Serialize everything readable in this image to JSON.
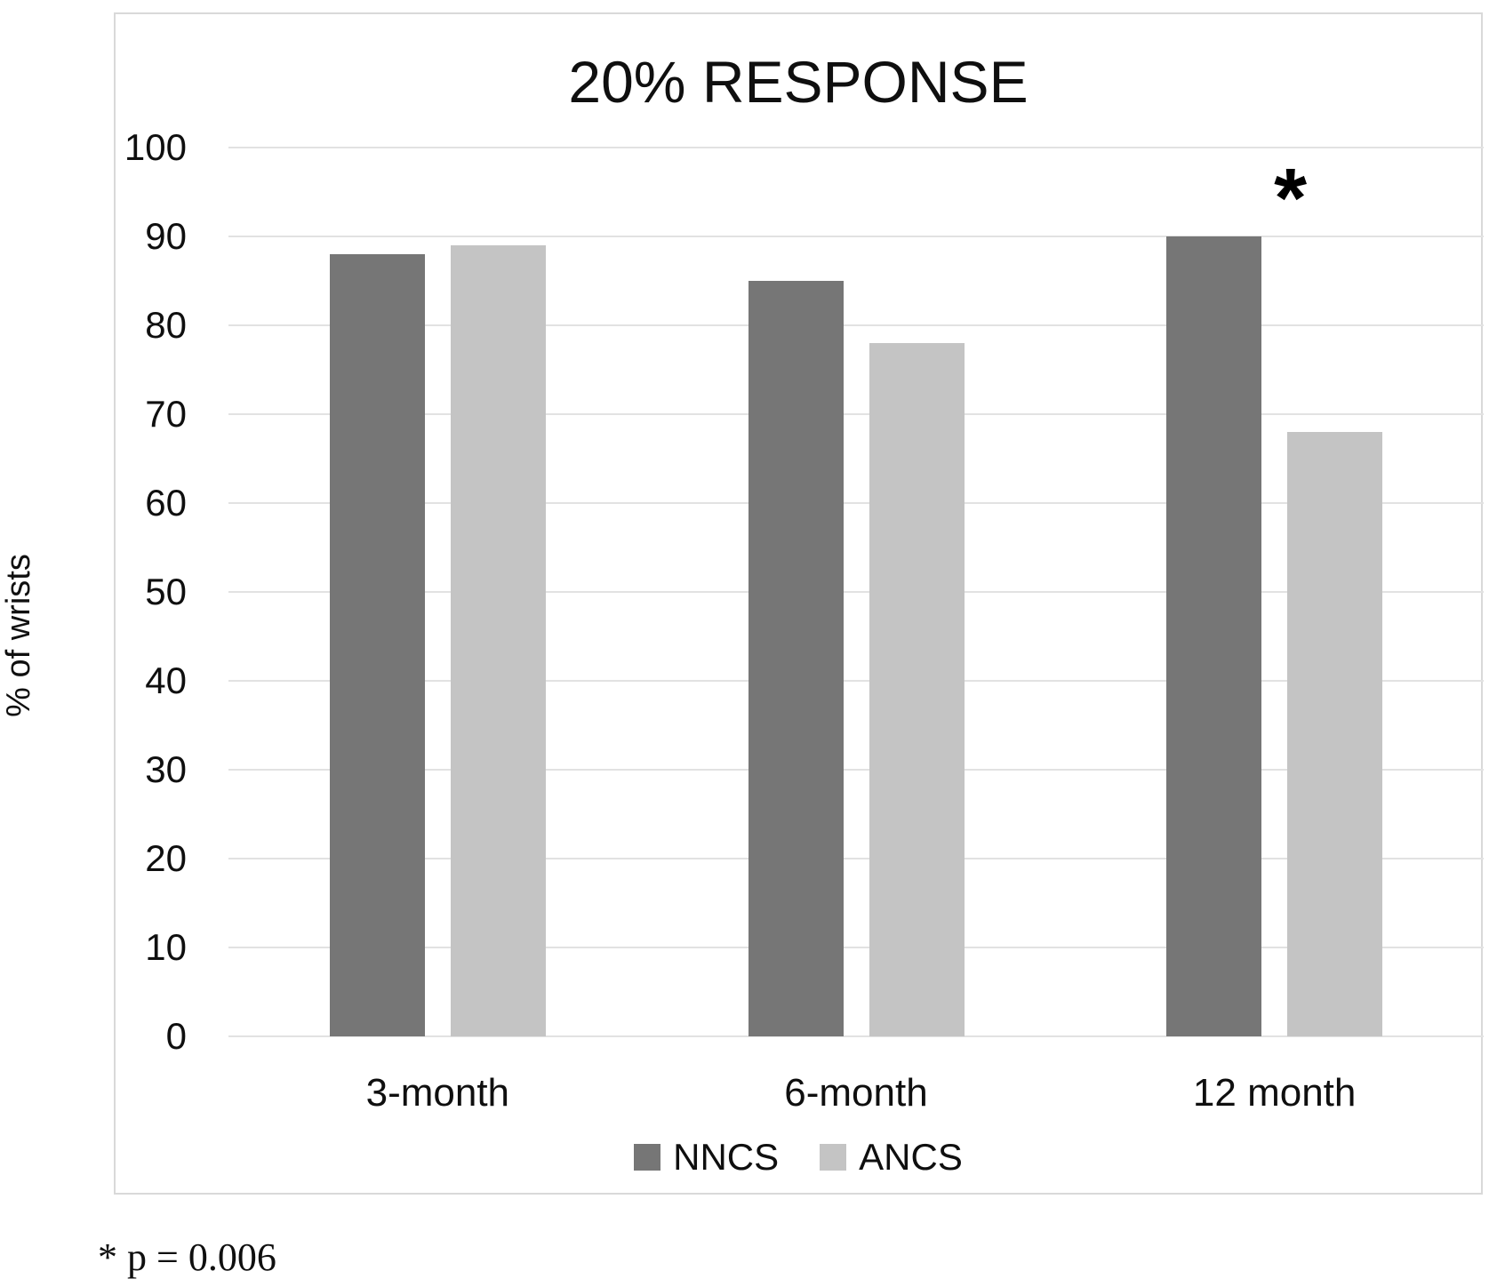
{
  "figure": {
    "footnote": "* p = 0.006"
  },
  "chart_data": {
    "type": "bar",
    "title": "20% RESPONSE",
    "ylabel": "% of wrists",
    "xlabel": "",
    "categories": [
      "3-month",
      "6-month",
      "12 month"
    ],
    "series": [
      {
        "name": "NNCS",
        "color": "#767676",
        "values": [
          88,
          85,
          90
        ]
      },
      {
        "name": "ANCS",
        "color": "#C4C4C4",
        "values": [
          89,
          78,
          68
        ]
      }
    ],
    "ylim": [
      0,
      100
    ],
    "yticks": [
      0,
      10,
      20,
      30,
      40,
      50,
      60,
      70,
      80,
      90,
      100
    ],
    "grid": true,
    "legend_position": "bottom",
    "annotations": [
      {
        "text": "*",
        "category": "12 month",
        "y": 98,
        "x_offset": 18
      }
    ]
  },
  "colors": {
    "gridline": "#E2E2E2",
    "frame_border": "#D9D9D9",
    "background": "#FFFFFF",
    "text": "#0F0F0F"
  }
}
